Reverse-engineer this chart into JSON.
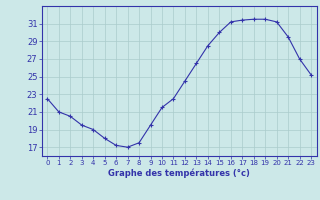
{
  "hours": [
    0,
    1,
    2,
    3,
    4,
    5,
    6,
    7,
    8,
    9,
    10,
    11,
    12,
    13,
    14,
    15,
    16,
    17,
    18,
    19,
    20,
    21,
    22,
    23
  ],
  "temps": [
    22.5,
    21.0,
    20.5,
    19.5,
    19.0,
    18.0,
    17.2,
    17.0,
    17.5,
    19.5,
    21.5,
    22.5,
    24.5,
    26.5,
    28.5,
    30.0,
    31.2,
    31.4,
    31.5,
    31.5,
    31.2,
    29.5,
    27.0,
    25.2
  ],
  "line_color": "#3333aa",
  "marker": "+",
  "bg_color": "#cce8e8",
  "grid_color": "#aacccc",
  "xlabel": "Graphe des températures (°c)",
  "xlabel_color": "#3333aa",
  "tick_color": "#3333aa",
  "ylim": [
    16,
    33
  ],
  "yticks": [
    17,
    19,
    21,
    23,
    25,
    27,
    29,
    31
  ],
  "xticks": [
    0,
    1,
    2,
    3,
    4,
    5,
    6,
    7,
    8,
    9,
    10,
    11,
    12,
    13,
    14,
    15,
    16,
    17,
    18,
    19,
    20,
    21,
    22,
    23
  ],
  "xlim": [
    -0.5,
    23.5
  ],
  "spine_color": "#3333aa",
  "fig_bg": "#cce8e8"
}
